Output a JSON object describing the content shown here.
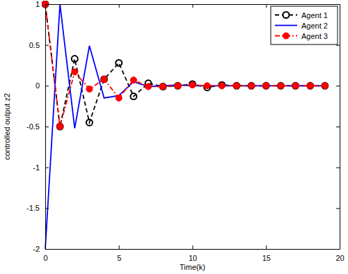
{
  "chart_data": {
    "type": "line",
    "x_label": "Time(k)",
    "y_label": "controlled output z2",
    "x": [
      0,
      1,
      2,
      3,
      4,
      5,
      6,
      7,
      8,
      9,
      10,
      11,
      12,
      13,
      14,
      15,
      16,
      17,
      18,
      19
    ],
    "series": [
      {
        "name": "Agent 1",
        "color": "#000000",
        "marker": "circle-open",
        "line_style": "dashed",
        "values": [
          1,
          -0.5,
          0.33,
          -0.45,
          0.08,
          0.28,
          -0.13,
          0.03,
          -0.01,
          0,
          0.02,
          -0.02,
          0.01,
          0,
          0,
          0,
          0,
          0,
          0,
          0
        ]
      },
      {
        "name": "Agent 2",
        "color": "#0000ff",
        "marker": "none",
        "line_style": "solid",
        "values": [
          -2,
          1,
          -0.52,
          0.49,
          -0.15,
          -0.12,
          0.05,
          -0.01,
          0,
          0.01,
          0,
          0,
          0,
          0,
          0,
          0,
          0,
          0,
          0,
          0
        ]
      },
      {
        "name": "Agent 3",
        "color": "#ff0000",
        "marker": "circle",
        "line_style": "dashdot",
        "values": [
          1,
          -0.5,
          0.17,
          -0.04,
          0.08,
          -0.15,
          0.07,
          -0.01,
          -0.01,
          0,
          0.01,
          0,
          0,
          0,
          0,
          0,
          0,
          0,
          0,
          0
        ]
      }
    ],
    "xlim": [
      0,
      20
    ],
    "xticks": [
      0,
      5,
      10,
      15,
      20
    ],
    "ylim": [
      -2,
      1
    ],
    "yticks": [
      -2,
      -1.5,
      -1,
      -0.5,
      0,
      0.5,
      1
    ],
    "legend": "upper right",
    "grid": false
  }
}
